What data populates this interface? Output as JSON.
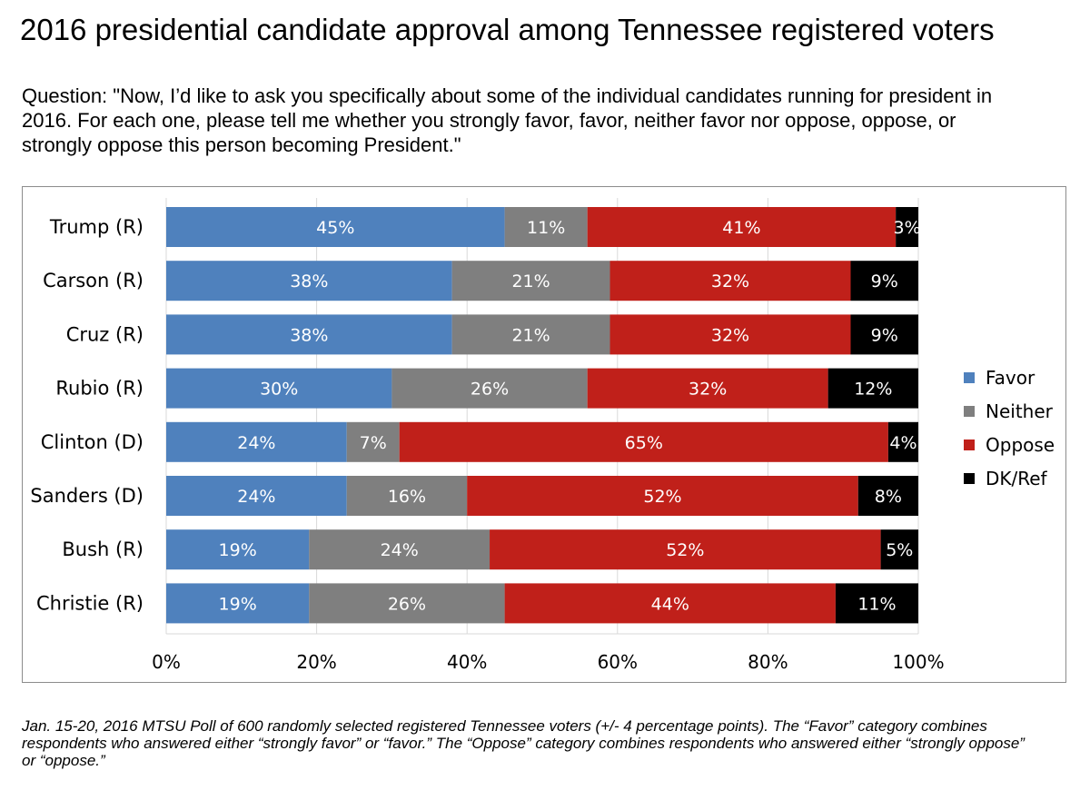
{
  "title": "2016 presidential candidate approval among Tennessee registered voters",
  "question": "Question: \"Now, I’d like to ask you specifically about some of the individual candidates running for president in 2016. For each one, please tell me whether you strongly favor, favor, neither favor nor oppose, oppose, or strongly oppose this person becoming President.\"",
  "footnote": "Jan. 15-20, 2016 MTSU Poll of 600 randomly selected registered Tennessee voters (+/- 4 percentage points). The “Favor” category combines respondents who answered either “strongly favor” or “favor.” The “Oppose” category combines respondents who answered either “strongly oppose” or “oppose.”",
  "chart_data": {
    "type": "bar",
    "orientation": "horizontal",
    "stacked": true,
    "categories": [
      "Trump (R)",
      "Carson (R)",
      "Cruz (R)",
      "Rubio (R)",
      "Clinton (D)",
      "Sanders (D)",
      "Bush (R)",
      "Christie (R)"
    ],
    "series": [
      {
        "name": "Favor",
        "color": "#4f81bd",
        "label_color": "#ffffff",
        "values": [
          45,
          38,
          38,
          30,
          24,
          24,
          19,
          19
        ]
      },
      {
        "name": "Neither",
        "color": "#7f7f7f",
        "label_color": "#ffffff",
        "values": [
          11,
          21,
          21,
          26,
          7,
          16,
          24,
          26
        ]
      },
      {
        "name": "Oppose",
        "color": "#c0201a",
        "label_color": "#ffffff",
        "values": [
          41,
          32,
          32,
          32,
          65,
          52,
          52,
          44
        ]
      },
      {
        "name": "DK/Ref",
        "color": "#000000",
        "label_color": "#ffffff",
        "values": [
          3,
          9,
          9,
          12,
          4,
          8,
          5,
          11
        ]
      }
    ],
    "value_suffix": "%",
    "xlim": [
      0,
      100
    ],
    "xticks": [
      "0%",
      "20%",
      "40%",
      "60%",
      "80%",
      "100%"
    ],
    "legend_position": "right",
    "grid": true
  }
}
